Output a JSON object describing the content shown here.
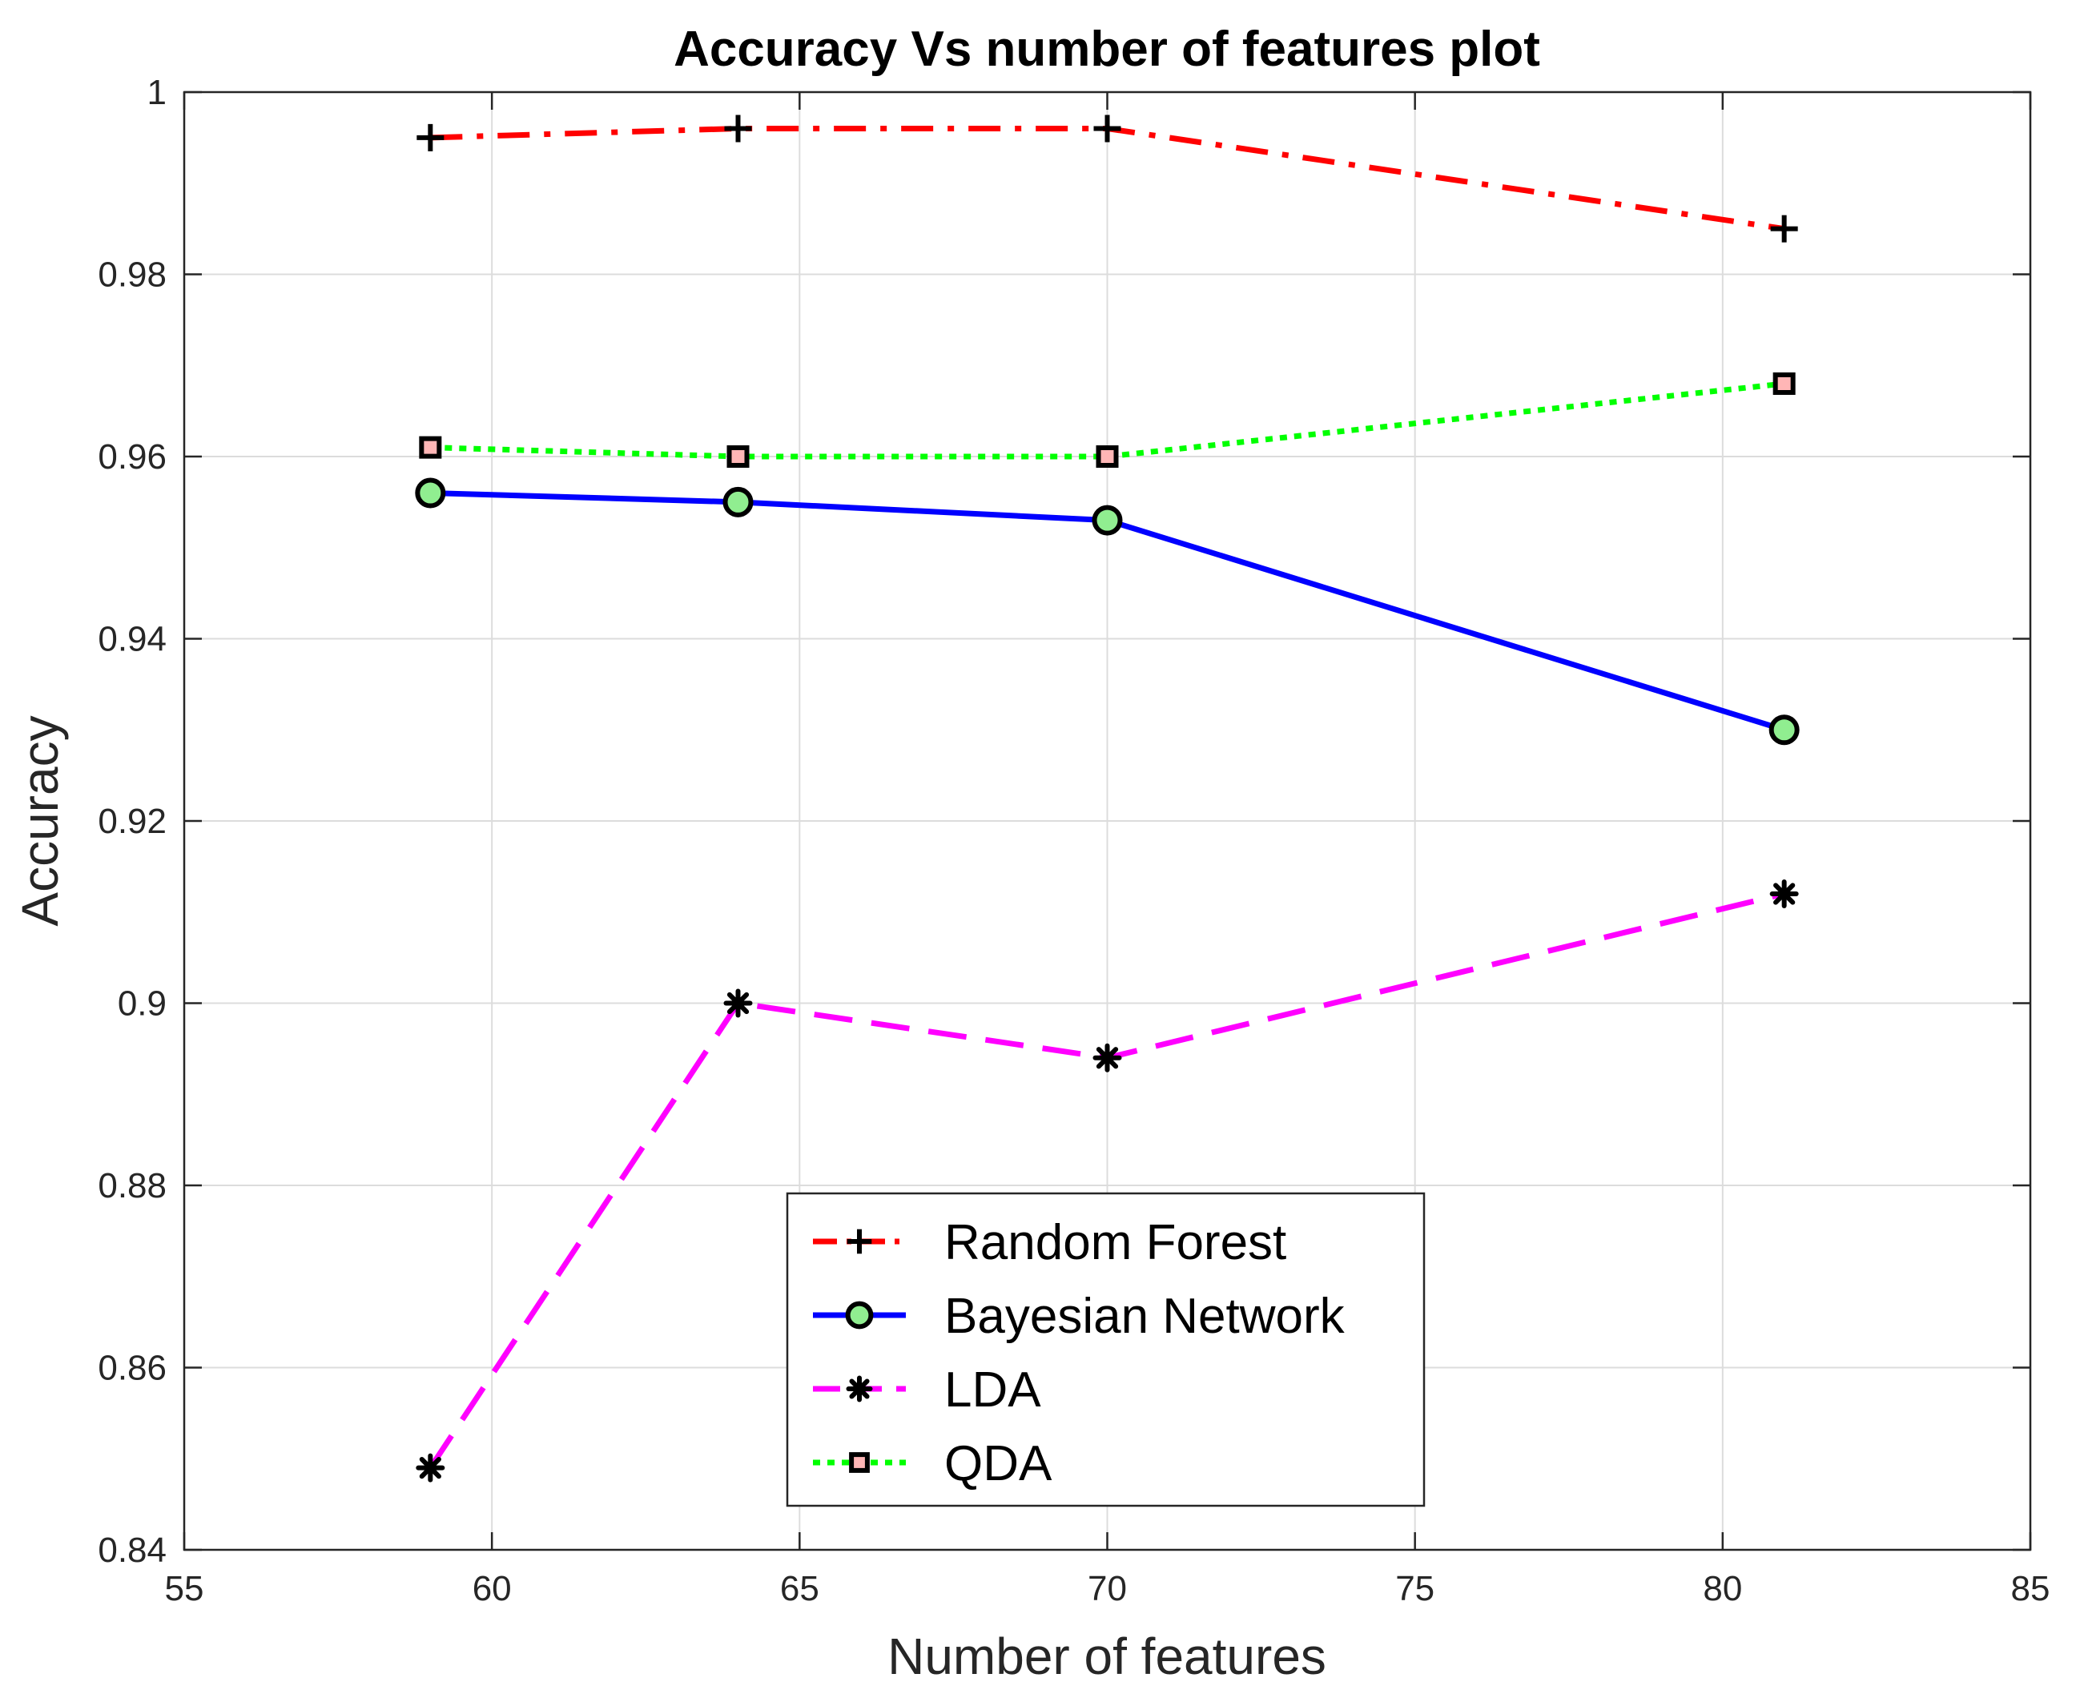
{
  "chart_data": {
    "type": "line",
    "title": "Accuracy Vs number of features plot",
    "xlabel": "Number of features",
    "ylabel": "Accuracy",
    "xlim": [
      55,
      85
    ],
    "ylim": [
      0.84,
      1
    ],
    "xticks": [
      55,
      60,
      65,
      70,
      75,
      80,
      85
    ],
    "xtick_labels": [
      "55",
      "60",
      "65",
      "70",
      "75",
      "80",
      "85"
    ],
    "yticks": [
      0.84,
      0.86,
      0.88,
      0.9,
      0.92,
      0.94,
      0.96,
      0.98,
      1
    ],
    "ytick_labels": [
      "0.84",
      "0.86",
      "0.88",
      "0.9",
      "0.92",
      "0.94",
      "0.96",
      "0.98",
      "1"
    ],
    "grid": true,
    "legend_position": "bottom-center",
    "x": [
      59,
      64,
      70,
      81
    ],
    "series": [
      {
        "name": "Random Forest",
        "values": [
          0.995,
          0.996,
          0.996,
          0.985
        ],
        "color": "#ff0000",
        "line_style": "dash-dot",
        "marker": "plus",
        "marker_color": "#000000"
      },
      {
        "name": "Bayesian Network",
        "values": [
          0.956,
          0.955,
          0.953,
          0.93
        ],
        "color": "#0000ff",
        "line_style": "solid",
        "marker": "circle",
        "marker_color": "#90ee90"
      },
      {
        "name": "LDA",
        "values": [
          0.849,
          0.9,
          0.894,
          0.912
        ],
        "color": "#ff00ff",
        "line_style": "dashed",
        "marker": "asterisk",
        "marker_color": "#000000"
      },
      {
        "name": "QDA",
        "values": [
          0.961,
          0.96,
          0.96,
          0.968
        ],
        "color": "#00ff00",
        "line_style": "dotted",
        "marker": "square",
        "marker_color": "#ffb6b6"
      }
    ]
  }
}
